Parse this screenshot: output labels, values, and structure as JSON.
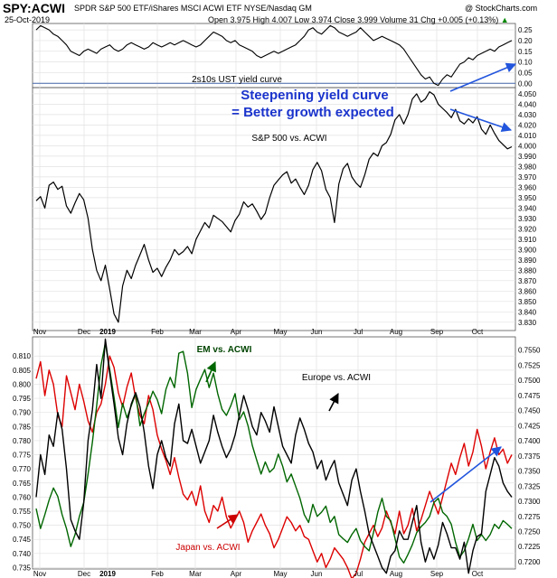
{
  "header": {
    "symbol": "SPY:ACWI",
    "description": "SPDR S&P 500 ETF/iShares MSCI ACWI ETF  NYSE/Nasdaq GM",
    "copyright": "@ StockCharts.com",
    "date": "25-Oct-2019",
    "quote": "Open 3.975  High 4.007  Low 3.974  Close 3.999  Volume 31  Chg +0.005 (+0.13%)",
    "quote_arrow": "▲"
  },
  "chart_data": [
    {
      "type": "line",
      "panel": "2s10s",
      "series": [
        {
          "name": "2s10s UST yield curve",
          "values": [
            0.25,
            0.27,
            0.26,
            0.25,
            0.23,
            0.22,
            0.2,
            0.18,
            0.15,
            0.14,
            0.13,
            0.15,
            0.16,
            0.15,
            0.14,
            0.16,
            0.17,
            0.18,
            0.16,
            0.15,
            0.16,
            0.18,
            0.19,
            0.18,
            0.17,
            0.16,
            0.17,
            0.19,
            0.18,
            0.17,
            0.18,
            0.19,
            0.18,
            0.19,
            0.2,
            0.19,
            0.18,
            0.17,
            0.18,
            0.2,
            0.22,
            0.24,
            0.23,
            0.22,
            0.2,
            0.19,
            0.2,
            0.18,
            0.17,
            0.16,
            0.15,
            0.13,
            0.12,
            0.13,
            0.14,
            0.15,
            0.14,
            0.15,
            0.16,
            0.17,
            0.18,
            0.2,
            0.22,
            0.25,
            0.26,
            0.24,
            0.23,
            0.25,
            0.27,
            0.26,
            0.24,
            0.23,
            0.22,
            0.23,
            0.24,
            0.26,
            0.24,
            0.22,
            0.2,
            0.21,
            0.22,
            0.21,
            0.2,
            0.19,
            0.18,
            0.16,
            0.13,
            0.1,
            0.07,
            0.04,
            0.02,
            0.03,
            0.0,
            -0.01,
            0.02,
            0.04,
            0.03,
            0.06,
            0.09,
            0.1,
            0.12,
            0.11,
            0.13,
            0.14,
            0.15,
            0.16,
            0.15,
            0.17,
            0.18,
            0.19,
            0.2
          ]
        }
      ],
      "ylim": [
        -0.02,
        0.28
      ],
      "yticks": [
        "0.25",
        "0.20",
        "0.15",
        "0.10",
        "0.05",
        "0.00"
      ],
      "zero_line": 0.0,
      "annotations": [
        "2s10s UST yield curve",
        "Steepening yield curve",
        "= Better growth expected"
      ]
    },
    {
      "type": "line",
      "panel": "SPY:ACWI",
      "series": [
        {
          "name": "S&P 500 vs. ACWI",
          "values": [
            3.947,
            3.951,
            3.94,
            3.962,
            3.965,
            3.958,
            3.961,
            3.942,
            3.935,
            3.945,
            3.954,
            3.948,
            3.93,
            3.9,
            3.88,
            3.87,
            3.885,
            3.862,
            3.838,
            3.83,
            3.865,
            3.88,
            3.872,
            3.885,
            3.895,
            3.905,
            3.89,
            3.878,
            3.882,
            3.874,
            3.883,
            3.89,
            3.9,
            3.895,
            3.898,
            3.903,
            3.896,
            3.91,
            3.918,
            3.926,
            3.921,
            3.933,
            3.93,
            3.927,
            3.922,
            3.917,
            3.928,
            3.934,
            3.946,
            3.941,
            3.944,
            3.937,
            3.929,
            3.935,
            3.95,
            3.962,
            3.967,
            3.972,
            3.975,
            3.964,
            3.968,
            3.96,
            3.953,
            3.962,
            3.977,
            3.984,
            3.976,
            3.958,
            3.95,
            3.926,
            3.963,
            3.978,
            3.983,
            3.97,
            3.964,
            3.96,
            3.972,
            3.987,
            3.993,
            3.99,
            4.0,
            4.003,
            4.011,
            4.025,
            4.03,
            4.021,
            4.03,
            4.045,
            4.05,
            4.042,
            4.045,
            4.052,
            4.049,
            4.04,
            4.036,
            4.032,
            4.027,
            4.035,
            4.024,
            4.021,
            4.026,
            4.022,
            4.028,
            4.016,
            4.011,
            4.02,
            4.012,
            4.005,
            4.001,
            3.997,
            3.999
          ]
        }
      ],
      "ylim": [
        3.822,
        4.056
      ],
      "yticks": [
        "4.050",
        "4.040",
        "4.030",
        "4.020",
        "4.010",
        "4.000",
        "3.990",
        "3.980",
        "3.970",
        "3.960",
        "3.950",
        "3.940",
        "3.930",
        "3.920",
        "3.910",
        "3.900",
        "3.890",
        "3.880",
        "3.870",
        "3.860",
        "3.850",
        "3.840",
        "3.830"
      ],
      "annotations": [
        "S&P 500 vs. ACWI"
      ]
    },
    {
      "type": "line",
      "panel": "regional",
      "series": [
        {
          "name": "Japan vs. ACWI",
          "color": "#dd0000",
          "axis": "left",
          "values": [
            0.802,
            0.808,
            0.796,
            0.805,
            0.8,
            0.789,
            0.785,
            0.803,
            0.797,
            0.791,
            0.8,
            0.794,
            0.787,
            0.783,
            0.79,
            0.793,
            0.8,
            0.81,
            0.806,
            0.797,
            0.792,
            0.799,
            0.804,
            0.795,
            0.789,
            0.786,
            0.796,
            0.791,
            0.782,
            0.777,
            0.773,
            0.768,
            0.774,
            0.767,
            0.761,
            0.759,
            0.762,
            0.757,
            0.764,
            0.755,
            0.751,
            0.757,
            0.755,
            0.76,
            0.753,
            0.749,
            0.752,
            0.755,
            0.751,
            0.744,
            0.748,
            0.751,
            0.754,
            0.75,
            0.747,
            0.742,
            0.745,
            0.749,
            0.753,
            0.751,
            0.748,
            0.75,
            0.746,
            0.745,
            0.741,
            0.737,
            0.74,
            0.735,
            0.738,
            0.742,
            0.74,
            0.738,
            0.735,
            0.731,
            0.733,
            0.738,
            0.744,
            0.747,
            0.75,
            0.746,
            0.749,
            0.755,
            0.751,
            0.747,
            0.755,
            0.747,
            0.75,
            0.756,
            0.748,
            0.752,
            0.757,
            0.762,
            0.758,
            0.754,
            0.76,
            0.766,
            0.772,
            0.768,
            0.774,
            0.779,
            0.771,
            0.776,
            0.784,
            0.778,
            0.77,
            0.776,
            0.781,
            0.775,
            0.777,
            0.772,
            0.775
          ]
        },
        {
          "name": "EM vs. ACWI",
          "color": "#006600",
          "axis": "right",
          "values": [
            0.7288,
            0.7255,
            0.7278,
            0.7302,
            0.7322,
            0.7308,
            0.7278,
            0.7255,
            0.7225,
            0.7245,
            0.7275,
            0.7298,
            0.7345,
            0.7398,
            0.7458,
            0.7525,
            0.7562,
            0.7518,
            0.7472,
            0.7422,
            0.7462,
            0.7438,
            0.7458,
            0.7478,
            0.7425,
            0.7445,
            0.7462,
            0.7482,
            0.7468,
            0.7445,
            0.7485,
            0.7505,
            0.7488,
            0.7545,
            0.7548,
            0.7512,
            0.7455,
            0.7485,
            0.7502,
            0.7518,
            0.7488,
            0.7512,
            0.7478,
            0.7452,
            0.7442,
            0.7458,
            0.7478,
            0.7435,
            0.7448,
            0.7425,
            0.7392,
            0.7368,
            0.7345,
            0.7365,
            0.7348,
            0.7355,
            0.7378,
            0.7358,
            0.7332,
            0.7345,
            0.7325,
            0.7305,
            0.7278,
            0.7265,
            0.7295,
            0.7275,
            0.7282,
            0.7292,
            0.7265,
            0.7275,
            0.7245,
            0.7238,
            0.7232,
            0.7245,
            0.7255,
            0.7235,
            0.7225,
            0.7218,
            0.7248,
            0.7282,
            0.7305,
            0.7275,
            0.7268,
            0.7238,
            0.7208,
            0.7198,
            0.7212,
            0.7228,
            0.7248,
            0.7258,
            0.7265,
            0.7275,
            0.7298,
            0.7305,
            0.7282,
            0.7275,
            0.7262,
            0.7232,
            0.7208,
            0.7218,
            0.7238,
            0.7262,
            0.7235,
            0.7245,
            0.7235,
            0.7245,
            0.7262,
            0.7255,
            0.7268,
            0.7262,
            0.7255
          ]
        },
        {
          "name": "Europe vs. ACWI",
          "color": "#000000",
          "axis": "left",
          "values": [
            0.76,
            0.775,
            0.768,
            0.782,
            0.778,
            0.79,
            0.784,
            0.77,
            0.752,
            0.748,
            0.745,
            0.758,
            0.78,
            0.791,
            0.807,
            0.795,
            0.816,
            0.804,
            0.793,
            0.781,
            0.775,
            0.786,
            0.793,
            0.797,
            0.792,
            0.783,
            0.771,
            0.763,
            0.775,
            0.78,
            0.774,
            0.771,
            0.786,
            0.793,
            0.78,
            0.779,
            0.784,
            0.778,
            0.772,
            0.776,
            0.78,
            0.789,
            0.783,
            0.778,
            0.774,
            0.777,
            0.782,
            0.789,
            0.796,
            0.791,
            0.785,
            0.782,
            0.79,
            0.787,
            0.783,
            0.792,
            0.785,
            0.778,
            0.775,
            0.772,
            0.782,
            0.788,
            0.784,
            0.779,
            0.776,
            0.77,
            0.773,
            0.766,
            0.77,
            0.773,
            0.765,
            0.761,
            0.757,
            0.766,
            0.77,
            0.762,
            0.755,
            0.747,
            0.743,
            0.739,
            0.735,
            0.733,
            0.739,
            0.741,
            0.748,
            0.745,
            0.745,
            0.751,
            0.757,
            0.744,
            0.737,
            0.742,
            0.738,
            0.743,
            0.751,
            0.747,
            0.742,
            0.742,
            0.738,
            0.744,
            0.733,
            0.741,
            0.746,
            0.747,
            0.762,
            0.768,
            0.774,
            0.771,
            0.765,
            0.762,
            0.76
          ]
        }
      ],
      "ylim_left": [
        0.7345,
        0.8168
      ],
      "ylim_right": [
        0.7188,
        0.7572
      ],
      "yticks_left": [
        "0.810",
        "0.805",
        "0.800",
        "0.795",
        "0.790",
        "0.785",
        "0.780",
        "0.775",
        "0.770",
        "0.765",
        "0.760",
        "0.755",
        "0.750",
        "0.745",
        "0.740",
        "0.735"
      ],
      "yticks_right": [
        "0.7550",
        "0.7525",
        "0.7500",
        "0.7475",
        "0.7450",
        "0.7425",
        "0.7400",
        "0.7375",
        "0.7350",
        "0.7325",
        "0.7300",
        "0.7275",
        "0.7250",
        "0.7225",
        "0.7200"
      ],
      "annotations": [
        "EM vs. ACWI",
        "Europe vs. ACWI",
        "Japan vs. ACWI"
      ]
    }
  ],
  "x_axis": {
    "labels": [
      "Nov",
      "Dec",
      "2019",
      "Feb",
      "Mar",
      "Apr",
      "May",
      "Jun",
      "Jul",
      "Aug",
      "Sep",
      "Oct"
    ]
  },
  "colors": {
    "arrow": "#2255dd",
    "annotation_text": "#1a33cc",
    "em_label": "#004400",
    "japan_label": "#cc0000"
  }
}
